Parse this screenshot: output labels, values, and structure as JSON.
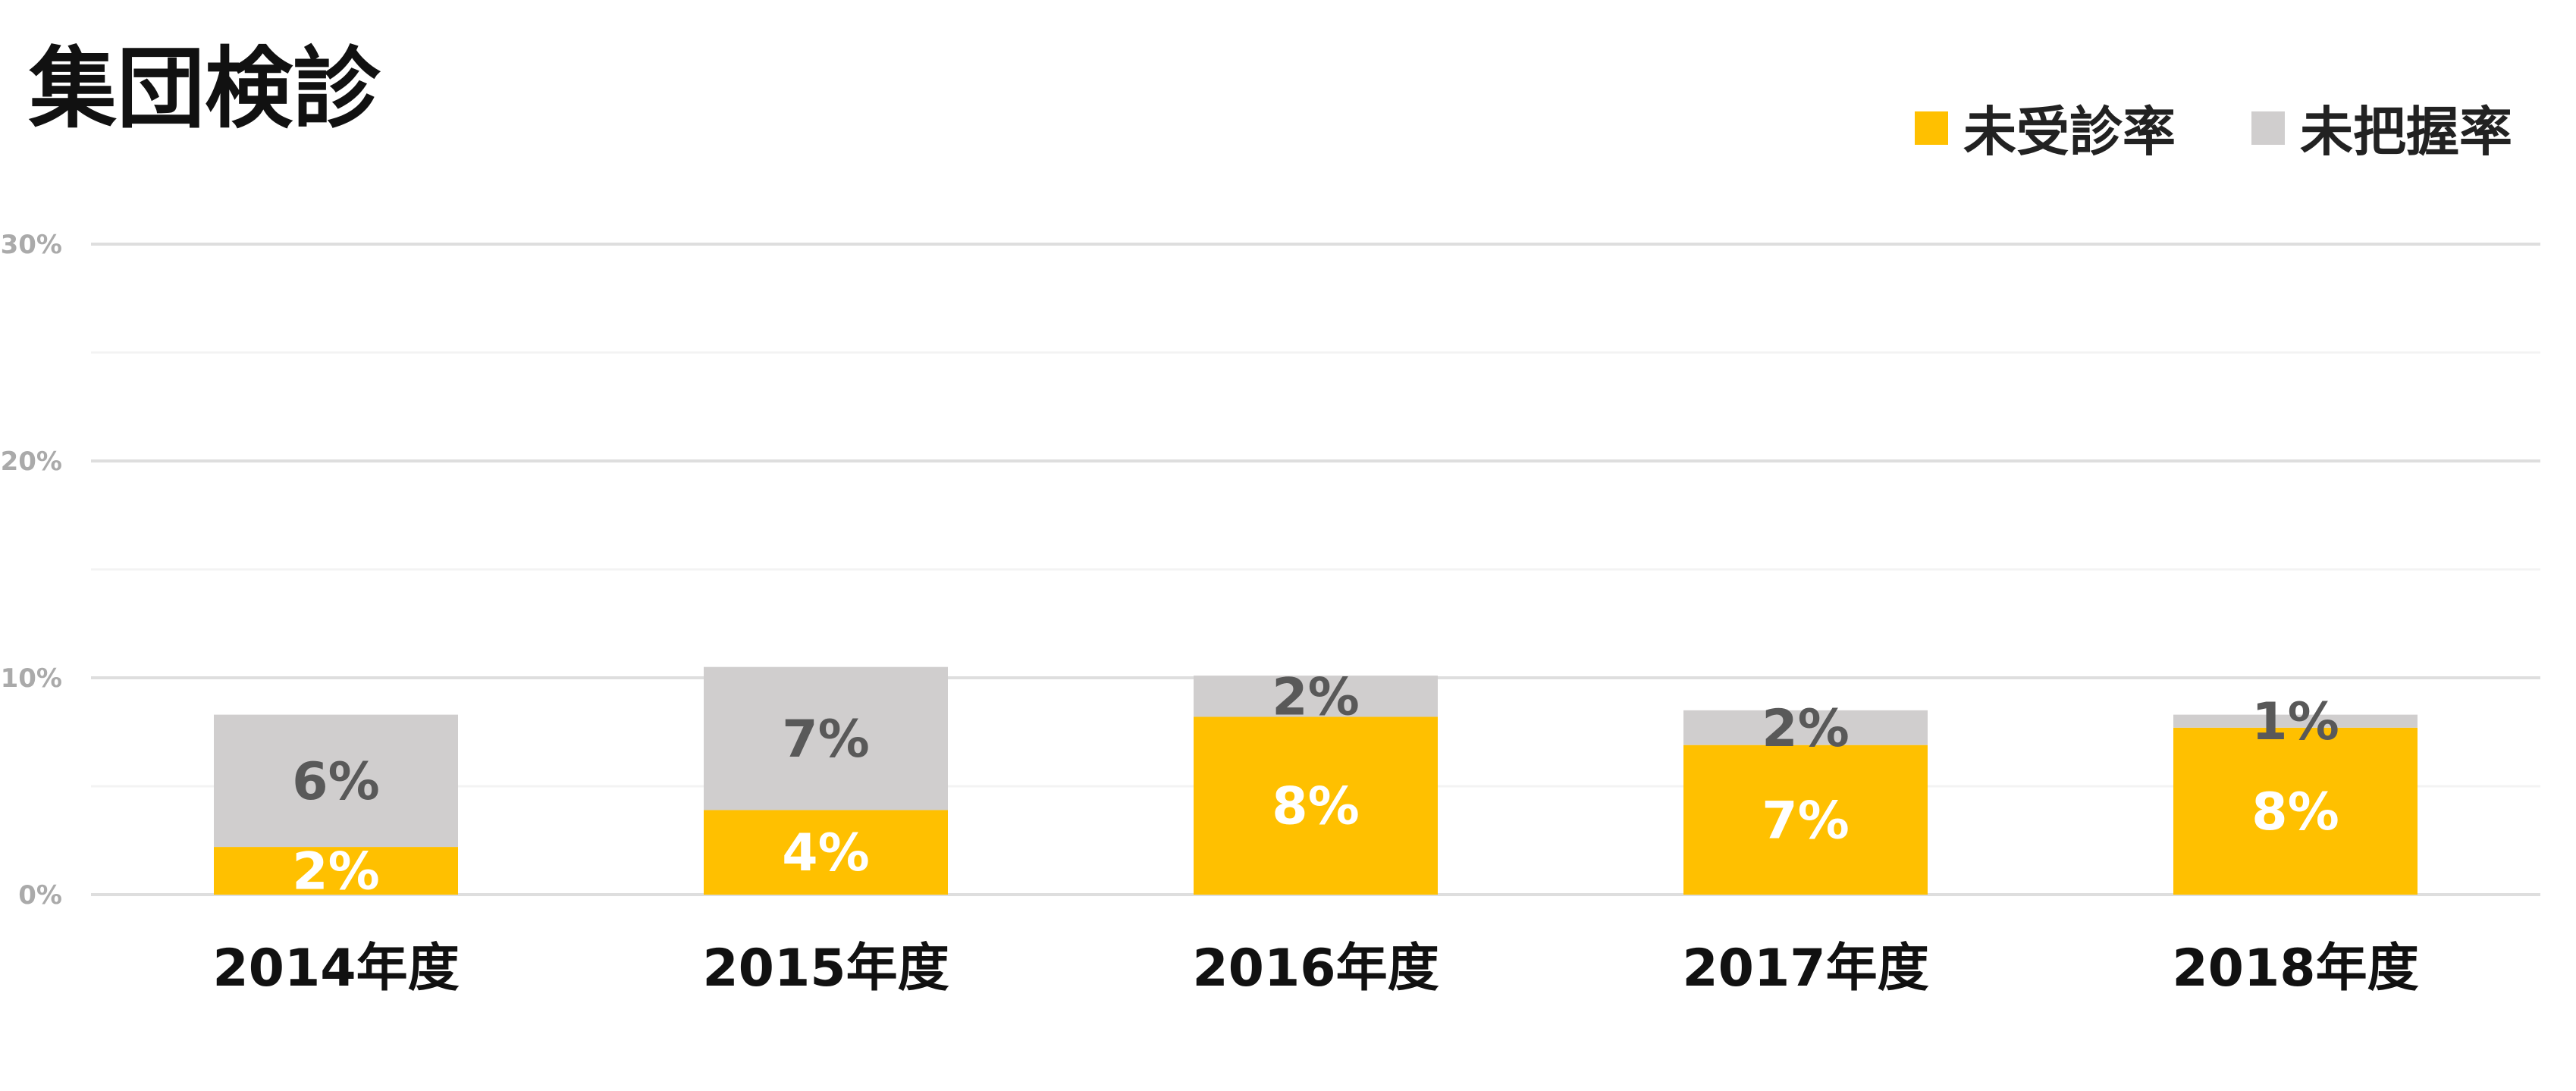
{
  "chart_data": {
    "type": "bar",
    "stacked": true,
    "title": "集団検診",
    "categories": [
      "2014年度",
      "2015年度",
      "2016年度",
      "2017年度",
      "2018年度"
    ],
    "series": [
      {
        "name": "未受診率",
        "color": "#FFC000",
        "values": [
          2.2,
          3.9,
          8.2,
          6.9,
          7.7
        ],
        "labels": [
          "2%",
          "4%",
          "8%",
          "7%",
          "8%"
        ],
        "label_color": "#FFFFFF"
      },
      {
        "name": "未把握率",
        "color": "#D0CECE",
        "values": [
          6.1,
          6.6,
          1.9,
          1.6,
          0.6
        ],
        "labels": [
          "6%",
          "7%",
          "2%",
          "2%",
          "1%"
        ],
        "label_color": "#595959"
      }
    ],
    "ylim": [
      0,
      30
    ],
    "yticks": [
      {
        "value": 0,
        "label": "0%"
      },
      {
        "value": 10,
        "label": "10%"
      },
      {
        "value": 20,
        "label": "20%"
      },
      {
        "value": 30,
        "label": "30%"
      }
    ],
    "minor_gridlines": [
      5,
      15,
      25
    ],
    "grid": true,
    "legend_position": "top-right",
    "xlabel": "",
    "ylabel": ""
  }
}
